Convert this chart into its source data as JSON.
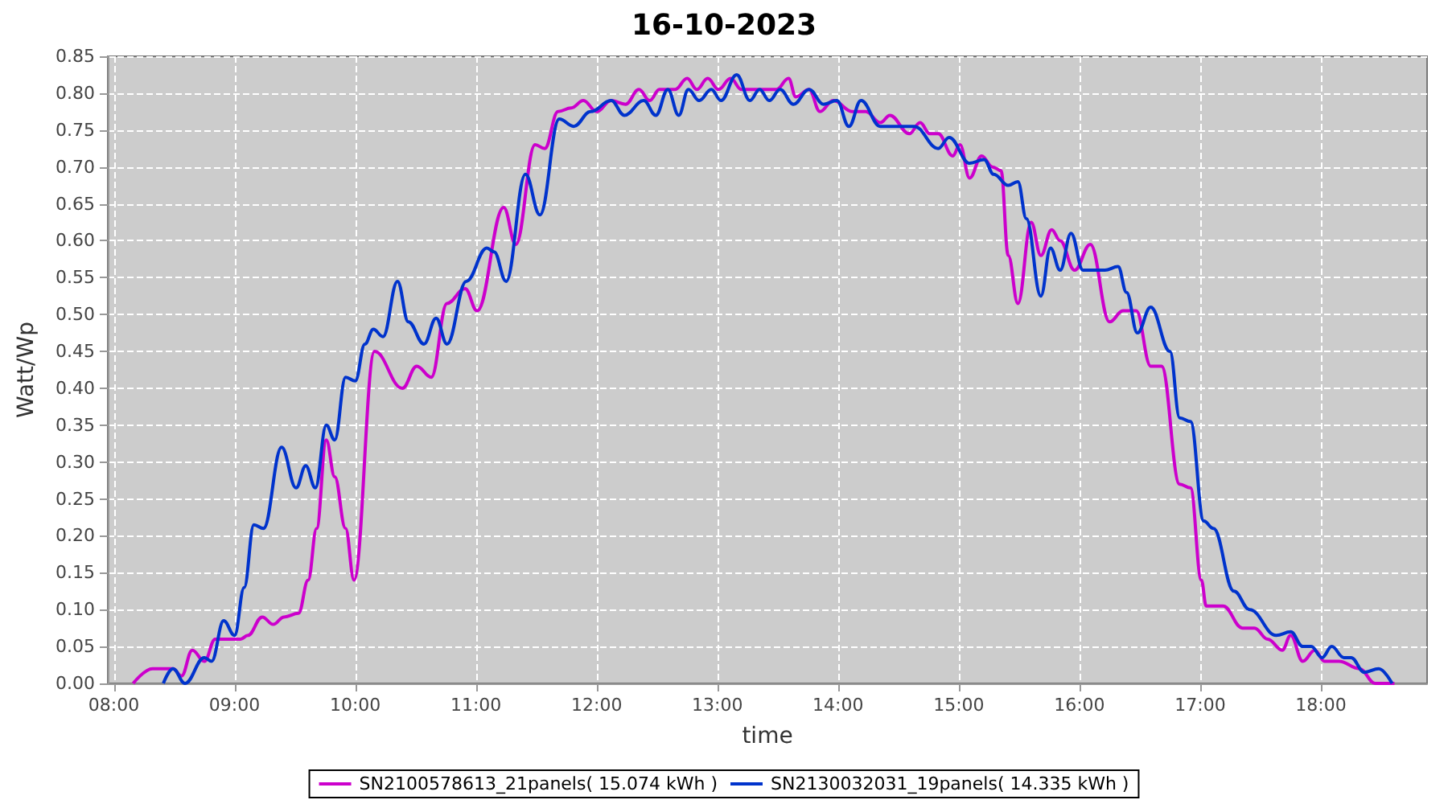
{
  "chart_data": {
    "type": "line",
    "title": "16-10-2023",
    "xlabel": "time",
    "ylabel": "Watt/Wp",
    "xlim": [
      7.95,
      18.88
    ],
    "xticks": [
      {
        "value": 8,
        "label": "08:00"
      },
      {
        "value": 9,
        "label": "09:00"
      },
      {
        "value": 10,
        "label": "10:00"
      },
      {
        "value": 11,
        "label": "11:00"
      },
      {
        "value": 12,
        "label": "12:00"
      },
      {
        "value": 13,
        "label": "13:00"
      },
      {
        "value": 14,
        "label": "14:00"
      },
      {
        "value": 15,
        "label": "15:00"
      },
      {
        "value": 16,
        "label": "16:00"
      },
      {
        "value": 17,
        "label": "17:00"
      },
      {
        "value": 18,
        "label": "18:00"
      }
    ],
    "ylim": [
      0,
      0.85
    ],
    "yticks": [
      {
        "value": 0,
        "label": "0.00"
      },
      {
        "value": 0.05,
        "label": "0.05"
      },
      {
        "value": 0.1,
        "label": "0.10"
      },
      {
        "value": 0.15,
        "label": "0.15"
      },
      {
        "value": 0.2,
        "label": "0.20"
      },
      {
        "value": 0.25,
        "label": "0.25"
      },
      {
        "value": 0.3,
        "label": "0.30"
      },
      {
        "value": 0.35,
        "label": "0.35"
      },
      {
        "value": 0.4,
        "label": "0.40"
      },
      {
        "value": 0.45,
        "label": "0.45"
      },
      {
        "value": 0.5,
        "label": "0.50"
      },
      {
        "value": 0.55,
        "label": "0.55"
      },
      {
        "value": 0.6,
        "label": "0.60"
      },
      {
        "value": 0.65,
        "label": "0.65"
      },
      {
        "value": 0.7,
        "label": "0.70"
      },
      {
        "value": 0.75,
        "label": "0.75"
      },
      {
        "value": 0.8,
        "label": "0.80"
      },
      {
        "value": 0.85,
        "label": "0.85"
      }
    ],
    "grid": true,
    "legend": "bottom",
    "line_style": "solid",
    "series": [
      {
        "name": "SN2100578613_21panels( 15.074 kWh )",
        "color": "#cc00cc",
        "x": [
          8.16,
          8.32,
          8.49,
          8.56,
          8.65,
          8.75,
          8.84,
          9.05,
          9.11,
          9.23,
          9.32,
          9.41,
          9.53,
          9.61,
          9.68,
          9.76,
          9.83,
          9.92,
          9.99,
          10.16,
          10.39,
          10.51,
          10.63,
          10.76,
          10.91,
          11.01,
          11.23,
          11.33,
          11.49,
          11.57,
          11.68,
          11.79,
          11.89,
          12.0,
          12.12,
          12.24,
          12.35,
          12.44,
          12.52,
          12.65,
          12.75,
          12.83,
          12.92,
          13.01,
          13.11,
          13.2,
          13.49,
          13.59,
          13.65,
          13.76,
          13.85,
          13.96,
          14.12,
          14.23,
          14.35,
          14.43,
          14.59,
          14.68,
          14.76,
          14.83,
          14.95,
          15.01,
          15.09,
          15.19,
          15.28,
          15.35,
          15.41,
          15.49,
          15.6,
          15.68,
          15.77,
          15.84,
          15.96,
          16.09,
          16.25,
          16.36,
          16.47,
          16.59,
          16.68,
          16.83,
          16.92,
          17.01,
          17.05,
          17.19,
          17.35,
          17.45,
          17.56,
          17.68,
          17.75,
          17.85,
          17.95,
          18.03,
          18.15,
          18.32,
          18.45,
          18.61
        ],
        "values": [
          0,
          0.02,
          0.02,
          0.01,
          0.045,
          0.03,
          0.06,
          0.06,
          0.065,
          0.09,
          0.08,
          0.09,
          0.095,
          0.14,
          0.21,
          0.33,
          0.28,
          0.21,
          0.14,
          0.45,
          0.4,
          0.43,
          0.415,
          0.515,
          0.535,
          0.505,
          0.645,
          0.595,
          0.73,
          0.725,
          0.775,
          0.78,
          0.79,
          0.775,
          0.79,
          0.785,
          0.805,
          0.79,
          0.805,
          0.805,
          0.82,
          0.805,
          0.82,
          0.805,
          0.82,
          0.805,
          0.805,
          0.82,
          0.795,
          0.805,
          0.775,
          0.79,
          0.775,
          0.775,
          0.76,
          0.77,
          0.745,
          0.76,
          0.745,
          0.745,
          0.715,
          0.73,
          0.685,
          0.715,
          0.7,
          0.695,
          0.58,
          0.515,
          0.625,
          0.58,
          0.615,
          0.6,
          0.56,
          0.595,
          0.49,
          0.505,
          0.505,
          0.43,
          0.43,
          0.27,
          0.265,
          0.14,
          0.105,
          0.105,
          0.075,
          0.075,
          0.06,
          0.045,
          0.065,
          0.03,
          0.045,
          0.03,
          0.03,
          0.02,
          0,
          0
        ]
      },
      {
        "name": "SN2130032031_19panels( 14.335 kWh )",
        "color": "#0033cc",
        "x": [
          8.41,
          8.49,
          8.59,
          8.75,
          8.81,
          8.91,
          9.0,
          9.08,
          9.16,
          9.24,
          9.39,
          9.51,
          9.59,
          9.67,
          9.76,
          9.83,
          9.92,
          10.0,
          10.08,
          10.15,
          10.23,
          10.35,
          10.44,
          10.57,
          10.67,
          10.76,
          10.92,
          11.09,
          11.15,
          11.25,
          11.41,
          11.53,
          11.69,
          11.81,
          11.95,
          12.12,
          12.23,
          12.39,
          12.49,
          12.59,
          12.68,
          12.76,
          12.85,
          12.95,
          13.03,
          13.16,
          13.27,
          13.35,
          13.43,
          13.52,
          13.63,
          13.76,
          13.88,
          13.99,
          14.09,
          14.19,
          14.35,
          14.63,
          14.83,
          14.92,
          15.09,
          15.21,
          15.29,
          15.41,
          15.49,
          15.56,
          15.68,
          15.76,
          15.84,
          15.93,
          16.03,
          16.21,
          16.32,
          16.39,
          16.48,
          16.59,
          16.75,
          16.83,
          16.92,
          17.03,
          17.11,
          17.28,
          17.41,
          17.63,
          17.75,
          17.85,
          17.92,
          18.01,
          18.09,
          18.19,
          18.25,
          18.36,
          18.48,
          18.59
        ],
        "values": [
          0,
          0.02,
          0,
          0.035,
          0.03,
          0.085,
          0.065,
          0.13,
          0.215,
          0.21,
          0.32,
          0.265,
          0.295,
          0.265,
          0.35,
          0.33,
          0.415,
          0.41,
          0.46,
          0.48,
          0.47,
          0.545,
          0.49,
          0.46,
          0.495,
          0.46,
          0.545,
          0.59,
          0.585,
          0.545,
          0.69,
          0.635,
          0.765,
          0.755,
          0.775,
          0.79,
          0.77,
          0.79,
          0.77,
          0.805,
          0.77,
          0.805,
          0.79,
          0.805,
          0.79,
          0.825,
          0.79,
          0.805,
          0.79,
          0.805,
          0.785,
          0.805,
          0.785,
          0.79,
          0.755,
          0.79,
          0.755,
          0.755,
          0.725,
          0.74,
          0.705,
          0.71,
          0.69,
          0.675,
          0.68,
          0.63,
          0.525,
          0.59,
          0.56,
          0.61,
          0.56,
          0.56,
          0.565,
          0.53,
          0.475,
          0.51,
          0.45,
          0.36,
          0.355,
          0.22,
          0.21,
          0.125,
          0.1,
          0.065,
          0.07,
          0.05,
          0.05,
          0.035,
          0.05,
          0.035,
          0.035,
          0.015,
          0.02,
          0
        ]
      }
    ]
  }
}
